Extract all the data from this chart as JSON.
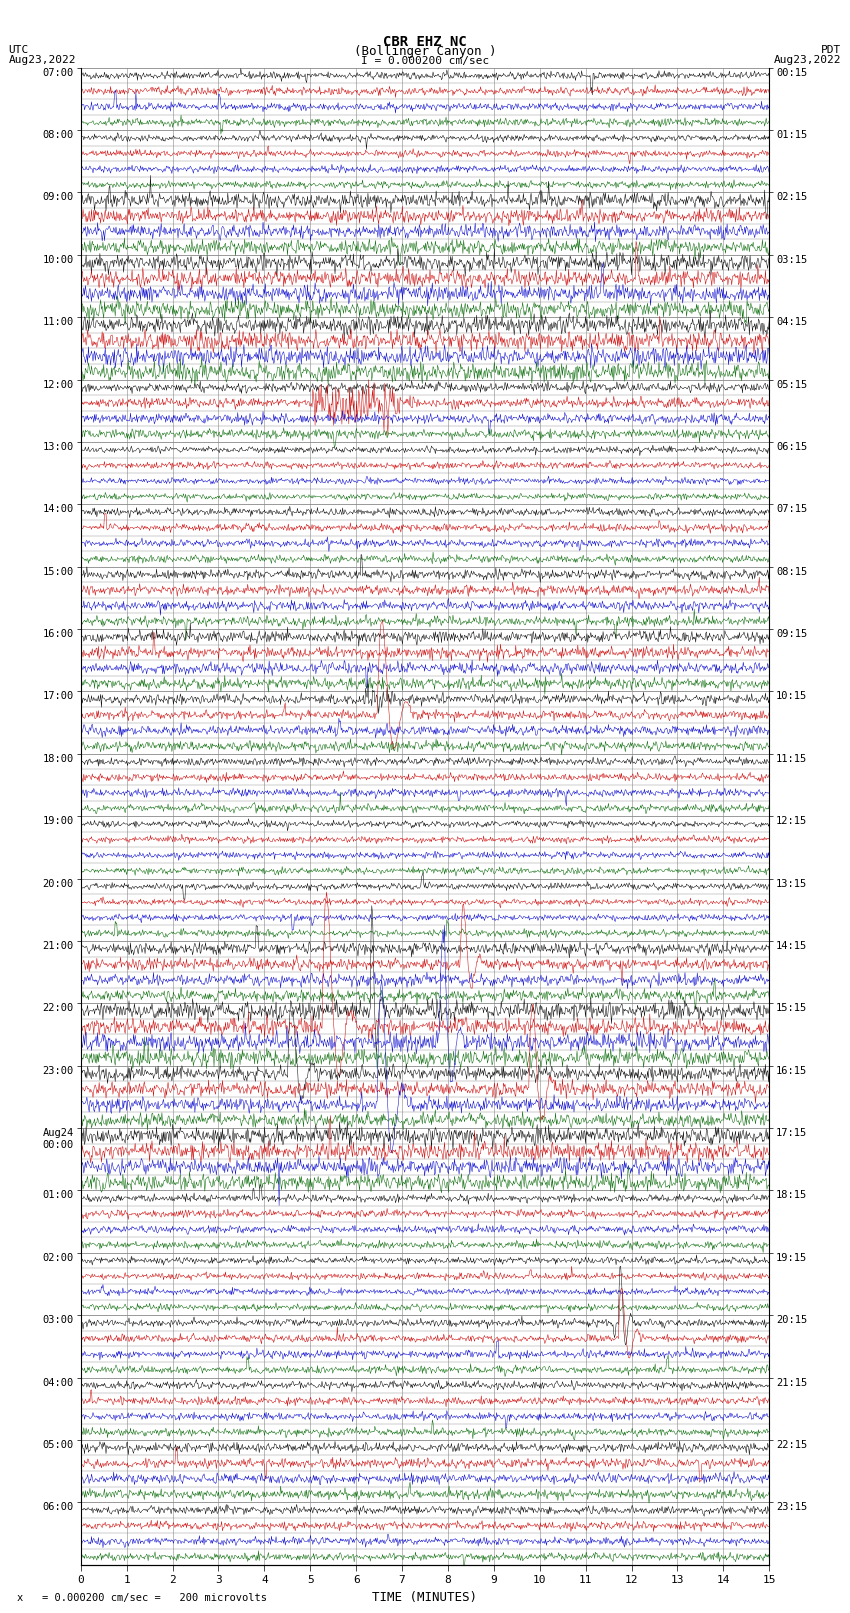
{
  "title_line1": "CBR EHZ NC",
  "title_line2": "(Bollinger Canyon )",
  "scale_label": "I = 0.000200 cm/sec",
  "left_header": "UTC",
  "left_date": "Aug23,2022",
  "right_header": "PDT",
  "right_date": "Aug23,2022",
  "xlabel": "TIME (MINUTES)",
  "footer": "= 0.000200 cm/sec =   200 microvolts",
  "background_color": "#ffffff",
  "trace_colors": [
    "#000000",
    "#cc0000",
    "#0000cc",
    "#006600"
  ],
  "utc_hour_labels": [
    "07:00",
    "08:00",
    "09:00",
    "10:00",
    "11:00",
    "12:00",
    "13:00",
    "14:00",
    "15:00",
    "16:00",
    "17:00",
    "18:00",
    "19:00",
    "20:00",
    "21:00",
    "22:00",
    "23:00",
    "Aug24\n00:00",
    "01:00",
    "02:00",
    "03:00",
    "04:00",
    "05:00",
    "06:00"
  ],
  "pdt_hour_labels": [
    "00:15",
    "01:15",
    "02:15",
    "03:15",
    "04:15",
    "05:15",
    "06:15",
    "07:15",
    "08:15",
    "09:15",
    "10:15",
    "11:15",
    "12:15",
    "13:15",
    "14:15",
    "15:15",
    "16:15",
    "17:15",
    "18:15",
    "19:15",
    "20:15",
    "21:15",
    "22:15",
    "23:15"
  ],
  "xmin": 0,
  "xmax": 15,
  "xticks": [
    0,
    1,
    2,
    3,
    4,
    5,
    6,
    7,
    8,
    9,
    10,
    11,
    12,
    13,
    14,
    15
  ],
  "n_hours": 24,
  "traces_per_hour": 4,
  "seed": 42,
  "figsize": [
    8.5,
    16.13
  ],
  "dpi": 100
}
